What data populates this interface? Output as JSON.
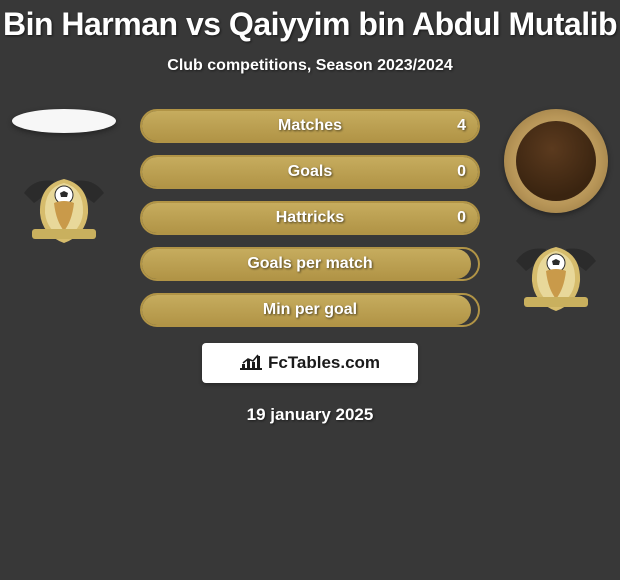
{
  "title": "Bin Harman vs Qaiyyim bin Abdul Mutalib",
  "subtitle": "Club competitions, Season 2023/2024",
  "date": "19 january 2025",
  "brand": "FcTables.com",
  "colors": {
    "background": "#383838",
    "bar_border": "#b19446",
    "bar_fill_top": "#c6ac5e",
    "bar_fill_bottom": "#b19446",
    "text": "#ffffff",
    "brand_bg": "#ffffff",
    "brand_text": "#1a1a1a"
  },
  "stats": [
    {
      "label": "Matches",
      "value": "4",
      "fill_pct": 100
    },
    {
      "label": "Goals",
      "value": "0",
      "fill_pct": 100
    },
    {
      "label": "Hattricks",
      "value": "0",
      "fill_pct": 100
    },
    {
      "label": "Goals per match",
      "value": "",
      "fill_pct": 98
    },
    {
      "label": "Min per goal",
      "value": "",
      "fill_pct": 98
    }
  ],
  "crest_colors": {
    "wings": "#2b2b2b",
    "shield_outer": "#d6bc6c",
    "shield_inner": "#e8d89a",
    "ball": "#ffffff",
    "banner": "#c9b05e"
  }
}
